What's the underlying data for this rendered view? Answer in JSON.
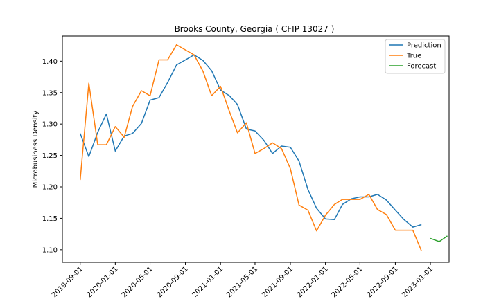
{
  "chart_data": {
    "type": "line",
    "title": "Brooks County, Georgia ( CFIP 13027 )",
    "xlabel": "",
    "ylabel": "Microbusiness Density",
    "x_range": [
      "2019-07-01",
      "2023-03-07"
    ],
    "ylim": [
      1.08,
      1.44
    ],
    "x_ticks": [
      "2019-09-01",
      "2020-01-01",
      "2020-05-01",
      "2020-09-01",
      "2021-01-01",
      "2021-05-01",
      "2021-09-01",
      "2022-01-01",
      "2022-05-01",
      "2022-09-01",
      "2023-01-01"
    ],
    "y_ticks": [
      "1.10",
      "1.15",
      "1.20",
      "1.25",
      "1.30",
      "1.35",
      "1.40"
    ],
    "grid": false,
    "legend_position": "top-right",
    "series": [
      {
        "name": "Prediction",
        "color": "#1f77b4",
        "points": [
          [
            "2019-09-01",
            1.285
          ],
          [
            "2019-10-01",
            1.248
          ],
          [
            "2019-11-01",
            1.287
          ],
          [
            "2019-12-01",
            1.316
          ],
          [
            "2020-01-01",
            1.257
          ],
          [
            "2020-02-01",
            1.281
          ],
          [
            "2020-03-01",
            1.285
          ],
          [
            "2020-04-01",
            1.301
          ],
          [
            "2020-05-01",
            1.338
          ],
          [
            "2020-06-01",
            1.342
          ],
          [
            "2020-07-01",
            1.366
          ],
          [
            "2020-08-01",
            1.394
          ],
          [
            "2020-09-01",
            1.402
          ],
          [
            "2020-10-01",
            1.41
          ],
          [
            "2020-11-01",
            1.401
          ],
          [
            "2020-12-01",
            1.385
          ],
          [
            "2021-01-01",
            1.354
          ],
          [
            "2021-02-01",
            1.345
          ],
          [
            "2021-03-01",
            1.331
          ],
          [
            "2021-04-01",
            1.292
          ],
          [
            "2021-05-01",
            1.289
          ],
          [
            "2021-06-01",
            1.274
          ],
          [
            "2021-07-01",
            1.253
          ],
          [
            "2021-08-01",
            1.265
          ],
          [
            "2021-09-01",
            1.263
          ],
          [
            "2021-10-01",
            1.241
          ],
          [
            "2021-11-01",
            1.196
          ],
          [
            "2021-12-01",
            1.166
          ],
          [
            "2022-01-01",
            1.149
          ],
          [
            "2022-02-01",
            1.148
          ],
          [
            "2022-03-01",
            1.172
          ],
          [
            "2022-04-01",
            1.181
          ],
          [
            "2022-05-01",
            1.184
          ],
          [
            "2022-06-01",
            1.184
          ],
          [
            "2022-07-01",
            1.188
          ],
          [
            "2022-08-01",
            1.179
          ],
          [
            "2022-09-01",
            1.163
          ],
          [
            "2022-10-01",
            1.148
          ],
          [
            "2022-11-01",
            1.136
          ],
          [
            "2022-12-01",
            1.14
          ]
        ]
      },
      {
        "name": "True",
        "color": "#ff7f0e",
        "points": [
          [
            "2019-09-01",
            1.211
          ],
          [
            "2019-10-01",
            1.365
          ],
          [
            "2019-11-01",
            1.267
          ],
          [
            "2019-12-01",
            1.267
          ],
          [
            "2020-01-01",
            1.296
          ],
          [
            "2020-02-01",
            1.279
          ],
          [
            "2020-03-01",
            1.328
          ],
          [
            "2020-04-01",
            1.353
          ],
          [
            "2020-05-01",
            1.345
          ],
          [
            "2020-06-01",
            1.402
          ],
          [
            "2020-07-01",
            1.402
          ],
          [
            "2020-08-01",
            1.426
          ],
          [
            "2020-10-01",
            1.41
          ],
          [
            "2020-11-01",
            1.384
          ],
          [
            "2020-12-01",
            1.345
          ],
          [
            "2021-01-01",
            1.36
          ],
          [
            "2021-02-01",
            1.32
          ],
          [
            "2021-03-01",
            1.286
          ],
          [
            "2021-04-01",
            1.302
          ],
          [
            "2021-05-01",
            1.253
          ],
          [
            "2021-06-01",
            1.261
          ],
          [
            "2021-07-01",
            1.27
          ],
          [
            "2021-08-01",
            1.261
          ],
          [
            "2021-09-01",
            1.229
          ],
          [
            "2021-10-01",
            1.171
          ],
          [
            "2021-11-01",
            1.163
          ],
          [
            "2021-12-01",
            1.13
          ],
          [
            "2022-01-01",
            1.155
          ],
          [
            "2022-02-01",
            1.172
          ],
          [
            "2022-03-01",
            1.18
          ],
          [
            "2022-04-01",
            1.18
          ],
          [
            "2022-05-01",
            1.18
          ],
          [
            "2022-06-01",
            1.188
          ],
          [
            "2022-07-01",
            1.164
          ],
          [
            "2022-08-01",
            1.156
          ],
          [
            "2022-09-01",
            1.131
          ],
          [
            "2022-10-01",
            1.131
          ],
          [
            "2022-11-01",
            1.131
          ],
          [
            "2022-12-01",
            1.098
          ]
        ]
      },
      {
        "name": "Forecast",
        "color": "#2ca02c",
        "points": [
          [
            "2023-01-01",
            1.118
          ],
          [
            "2023-02-01",
            1.113
          ],
          [
            "2023-03-01",
            1.122
          ]
        ]
      }
    ]
  }
}
